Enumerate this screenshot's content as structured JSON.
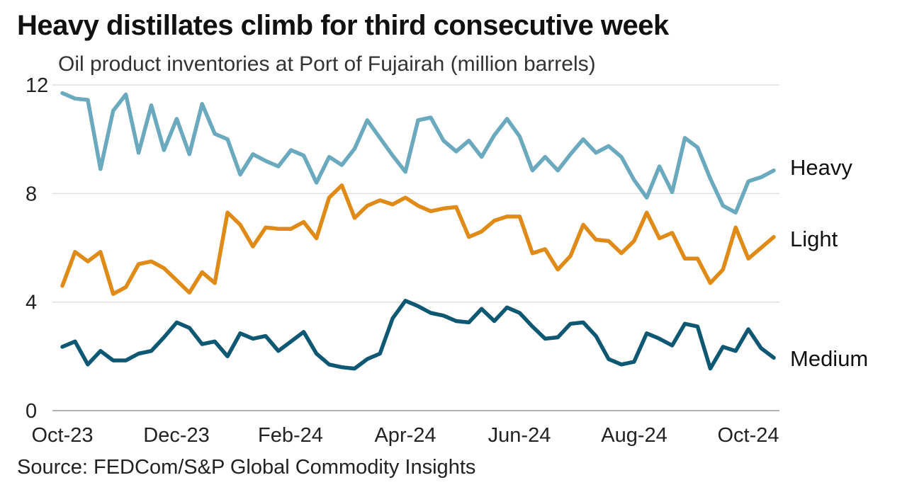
{
  "chart_data": {
    "type": "line",
    "title": "Heavy distillates climb for third consecutive week",
    "subtitle": "Oil product inventories at Port of Fujairah (million barrels)",
    "source": "Source: FEDCom/S&P Global Commodity Insights",
    "xlabel": "",
    "ylabel": "",
    "ylim": [
      0,
      12
    ],
    "y_ticks": [
      "0",
      "4",
      "8",
      "12"
    ],
    "x_ticks": [
      "Oct-23",
      "Dec-23",
      "Feb-24",
      "Apr-24",
      "Jun-24",
      "Aug-24",
      "Oct-24"
    ],
    "grid": true,
    "legend": "direct labels at line ends",
    "series": [
      {
        "name": "Heavy",
        "color": "#6aa9be",
        "values": [
          11.7,
          11.5,
          11.45,
          8.9,
          11.05,
          11.65,
          9.5,
          11.25,
          9.6,
          10.75,
          9.45,
          11.3,
          10.2,
          10.0,
          8.7,
          9.45,
          9.2,
          9.0,
          9.6,
          9.4,
          8.4,
          9.35,
          9.05,
          9.65,
          10.7,
          10.05,
          9.4,
          8.8,
          10.7,
          10.8,
          9.95,
          9.55,
          9.95,
          9.35,
          10.15,
          10.75,
          10.1,
          8.85,
          9.35,
          8.85,
          9.45,
          10.0,
          9.5,
          9.75,
          9.35,
          8.5,
          7.85,
          9.0,
          8.05,
          10.05,
          9.7,
          8.55,
          7.55,
          7.3,
          8.45,
          8.6,
          8.85
        ]
      },
      {
        "name": "Light",
        "color": "#e08a17",
        "values": [
          4.6,
          5.85,
          5.5,
          5.85,
          4.3,
          4.55,
          5.4,
          5.5,
          5.25,
          4.8,
          4.35,
          5.1,
          4.7,
          7.3,
          6.85,
          6.05,
          6.75,
          6.7,
          6.7,
          6.95,
          6.35,
          7.85,
          8.3,
          7.1,
          7.55,
          7.75,
          7.6,
          7.85,
          7.55,
          7.35,
          7.45,
          7.5,
          6.4,
          6.6,
          7.0,
          7.15,
          7.15,
          5.8,
          5.95,
          5.2,
          5.7,
          6.85,
          6.3,
          6.25,
          5.8,
          6.25,
          7.3,
          6.35,
          6.55,
          5.6,
          5.6,
          4.7,
          5.2,
          6.75,
          5.6,
          6.0,
          6.4
        ]
      },
      {
        "name": "Medium",
        "color": "#0e5873",
        "values": [
          2.35,
          2.55,
          1.7,
          2.2,
          1.85,
          1.85,
          2.1,
          2.2,
          2.7,
          3.25,
          3.05,
          2.45,
          2.55,
          2.0,
          2.85,
          2.65,
          2.75,
          2.2,
          2.55,
          2.9,
          2.1,
          1.7,
          1.6,
          1.55,
          1.9,
          2.1,
          3.4,
          4.05,
          3.85,
          3.6,
          3.5,
          3.3,
          3.25,
          3.75,
          3.3,
          3.8,
          3.6,
          3.1,
          2.65,
          2.7,
          3.2,
          3.25,
          2.75,
          1.9,
          1.7,
          1.8,
          2.85,
          2.65,
          2.4,
          3.2,
          3.1,
          1.55,
          2.35,
          2.2,
          3.0,
          2.3,
          1.95
        ]
      }
    ]
  }
}
